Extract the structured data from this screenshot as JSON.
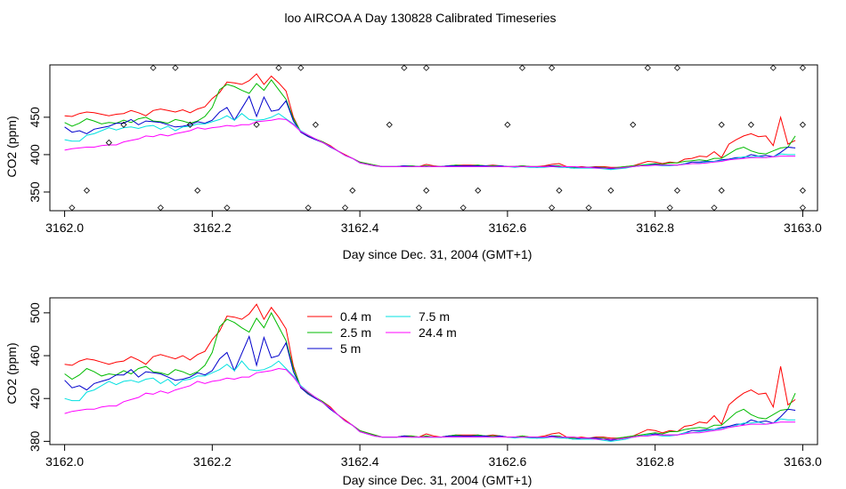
{
  "title": "loo AIRCOA A  Day 130828  Calibrated Timeseries",
  "colors": {
    "series_04": "#ff0000",
    "series_25": "#00bb00",
    "series_5": "#0000cc",
    "series_75": "#00e0e0",
    "series_244": "#ff00ff"
  },
  "chart_data": [
    {
      "type": "line",
      "xlabel": "Day since Dec. 31, 2004 (GMT+1)",
      "ylabel": "CO2 (ppm)",
      "xlim": [
        3161.98,
        3163.02
      ],
      "ylim": [
        325,
        520
      ],
      "xticks": [
        "3162.0",
        "3162.2",
        "3162.4",
        "3162.6",
        "3162.8",
        "3163.0"
      ],
      "yticks": [
        "350",
        "400",
        "450"
      ],
      "x": [
        3162.0,
        3162.01,
        3162.02,
        3162.03,
        3162.04,
        3162.05,
        3162.06,
        3162.07,
        3162.08,
        3162.09,
        3162.1,
        3162.11,
        3162.12,
        3162.13,
        3162.14,
        3162.15,
        3162.16,
        3162.17,
        3162.18,
        3162.19,
        3162.2,
        3162.21,
        3162.22,
        3162.23,
        3162.24,
        3162.25,
        3162.26,
        3162.27,
        3162.28,
        3162.29,
        3162.3,
        3162.31,
        3162.32,
        3162.33,
        3162.34,
        3162.35,
        3162.36,
        3162.37,
        3162.38,
        3162.39,
        3162.4,
        3162.41,
        3162.42,
        3162.43,
        3162.44,
        3162.45,
        3162.46,
        3162.47,
        3162.48,
        3162.49,
        3162.5,
        3162.51,
        3162.52,
        3162.53,
        3162.54,
        3162.55,
        3162.56,
        3162.57,
        3162.58,
        3162.59,
        3162.6,
        3162.61,
        3162.62,
        3162.63,
        3162.64,
        3162.65,
        3162.66,
        3162.67,
        3162.68,
        3162.69,
        3162.7,
        3162.71,
        3162.72,
        3162.73,
        3162.74,
        3162.75,
        3162.76,
        3162.77,
        3162.78,
        3162.79,
        3162.8,
        3162.81,
        3162.82,
        3162.83,
        3162.84,
        3162.85,
        3162.86,
        3162.87,
        3162.88,
        3162.89,
        3162.9,
        3162.91,
        3162.92,
        3162.93,
        3162.94,
        3162.95,
        3162.96,
        3162.97,
        3162.98,
        3162.99
      ],
      "series": [
        {
          "color_key": "series_04",
          "values": [
            452,
            451,
            455,
            457,
            456,
            454,
            452,
            454,
            455,
            459,
            456,
            452,
            459,
            461,
            459,
            457,
            460,
            456,
            461,
            464,
            475,
            483,
            497,
            496,
            494,
            499,
            508,
            494,
            505,
            496,
            485,
            450,
            430,
            425,
            421,
            417,
            412,
            405,
            400,
            395,
            390,
            388,
            386,
            384,
            384,
            384,
            385,
            385,
            384,
            387,
            385,
            384,
            385,
            386,
            386,
            386,
            386,
            385,
            386,
            385,
            384,
            384,
            385,
            384,
            384,
            385,
            387,
            388,
            384,
            383,
            384,
            383,
            384,
            384,
            383,
            383,
            384,
            385,
            388,
            391,
            390,
            388,
            390,
            389,
            394,
            395,
            398,
            397,
            404,
            396,
            414,
            420,
            425,
            428,
            424,
            425,
            412,
            450,
            414,
            419
          ]
        },
        {
          "color_key": "series_25",
          "values": [
            443,
            438,
            442,
            448,
            445,
            441,
            443,
            442,
            446,
            443,
            448,
            450,
            445,
            444,
            442,
            447,
            445,
            442,
            445,
            451,
            463,
            487,
            494,
            491,
            486,
            482,
            495,
            486,
            500,
            487,
            474,
            448,
            431,
            425,
            421,
            417,
            411,
            405,
            399,
            395,
            390,
            388,
            386,
            384,
            384,
            384,
            385,
            385,
            384,
            385,
            384,
            384,
            385,
            386,
            385,
            385,
            386,
            385,
            385,
            385,
            384,
            384,
            385,
            384,
            384,
            384,
            385,
            385,
            383,
            383,
            383,
            383,
            383,
            383,
            382,
            383,
            384,
            385,
            386,
            387,
            388,
            387,
            389,
            389,
            391,
            392,
            393,
            392,
            395,
            395,
            401,
            407,
            410,
            405,
            402,
            401,
            405,
            409,
            410,
            425
          ]
        },
        {
          "color_key": "series_5",
          "values": [
            437,
            430,
            432,
            428,
            434,
            436,
            438,
            442,
            442,
            447,
            440,
            445,
            444,
            443,
            440,
            437,
            438,
            440,
            444,
            442,
            446,
            457,
            463,
            446,
            462,
            478,
            451,
            477,
            458,
            460,
            472,
            445,
            430,
            424,
            420,
            416,
            410,
            405,
            399,
            395,
            389,
            387,
            385,
            384,
            384,
            384,
            385,
            384,
            384,
            384,
            384,
            384,
            385,
            385,
            385,
            385,
            385,
            385,
            384,
            385,
            384,
            384,
            384,
            384,
            383,
            384,
            385,
            384,
            383,
            382,
            383,
            383,
            383,
            382,
            381,
            382,
            383,
            384,
            385,
            386,
            387,
            386,
            386,
            386,
            388,
            390,
            390,
            391,
            391,
            393,
            394,
            396,
            396,
            400,
            398,
            399,
            397,
            403,
            410,
            409
          ]
        },
        {
          "color_key": "series_75",
          "values": [
            420,
            418,
            418,
            426,
            428,
            432,
            436,
            433,
            436,
            437,
            435,
            438,
            439,
            434,
            438,
            432,
            437,
            438,
            441,
            441,
            444,
            447,
            452,
            446,
            455,
            447,
            446,
            447,
            450,
            455,
            448,
            441,
            432,
            426,
            421,
            416,
            411,
            405,
            399,
            395,
            389,
            387,
            385,
            384,
            384,
            384,
            384,
            384,
            384,
            384,
            384,
            384,
            384,
            384,
            384,
            384,
            384,
            384,
            384,
            384,
            384,
            383,
            384,
            383,
            383,
            383,
            384,
            383,
            383,
            382,
            382,
            382,
            382,
            381,
            380,
            381,
            382,
            384,
            385,
            386,
            386,
            385,
            385,
            386,
            388,
            388,
            389,
            390,
            391,
            392,
            393,
            395,
            397,
            397,
            398,
            396,
            397,
            401,
            400,
            400
          ]
        },
        {
          "color_key": "series_244",
          "values": [
            406,
            408,
            409,
            410,
            410,
            412,
            413,
            413,
            417,
            419,
            421,
            425,
            424,
            427,
            425,
            428,
            430,
            432,
            436,
            434,
            436,
            437,
            439,
            438,
            440,
            440,
            444,
            445,
            446,
            448,
            447,
            440,
            431,
            426,
            421,
            416,
            411,
            405,
            399,
            395,
            389,
            387,
            385,
            384,
            384,
            384,
            384,
            384,
            384,
            384,
            384,
            384,
            384,
            384,
            384,
            384,
            384,
            384,
            384,
            384,
            384,
            384,
            384,
            384,
            384,
            384,
            384,
            384,
            384,
            384,
            383,
            383,
            382,
            382,
            382,
            382,
            383,
            384,
            385,
            385,
            386,
            386,
            386,
            386,
            387,
            388,
            388,
            389,
            390,
            391,
            393,
            394,
            395,
            396,
            396,
            396,
            397,
            398,
            398,
            398
          ]
        }
      ],
      "markers": [
        {
          "x": 3162.01,
          "y": 329
        },
        {
          "x": 3162.12,
          "y": 516
        },
        {
          "x": 3162.13,
          "y": 329
        },
        {
          "x": 3162.03,
          "y": 352
        },
        {
          "x": 3162.06,
          "y": 416
        },
        {
          "x": 3162.15,
          "y": 516
        },
        {
          "x": 3162.18,
          "y": 352
        },
        {
          "x": 3162.22,
          "y": 329
        },
        {
          "x": 3162.26,
          "y": 440
        },
        {
          "x": 3162.29,
          "y": 516
        },
        {
          "x": 3162.32,
          "y": 516
        },
        {
          "x": 3162.33,
          "y": 329
        },
        {
          "x": 3162.34,
          "y": 440
        },
        {
          "x": 3162.38,
          "y": 329
        },
        {
          "x": 3162.39,
          "y": 352
        },
        {
          "x": 3162.44,
          "y": 440
        },
        {
          "x": 3162.46,
          "y": 516
        },
        {
          "x": 3162.48,
          "y": 329
        },
        {
          "x": 3162.49,
          "y": 352
        },
        {
          "x": 3162.49,
          "y": 516
        },
        {
          "x": 3162.54,
          "y": 329
        },
        {
          "x": 3162.56,
          "y": 352
        },
        {
          "x": 3162.6,
          "y": 440
        },
        {
          "x": 3162.62,
          "y": 516
        },
        {
          "x": 3162.66,
          "y": 516
        },
        {
          "x": 3162.66,
          "y": 329
        },
        {
          "x": 3162.67,
          "y": 352
        },
        {
          "x": 3162.71,
          "y": 329
        },
        {
          "x": 3162.74,
          "y": 352
        },
        {
          "x": 3162.77,
          "y": 440
        },
        {
          "x": 3162.79,
          "y": 516
        },
        {
          "x": 3162.82,
          "y": 329
        },
        {
          "x": 3162.83,
          "y": 352
        },
        {
          "x": 3162.83,
          "y": 516
        },
        {
          "x": 3162.88,
          "y": 329
        },
        {
          "x": 3162.89,
          "y": 352
        },
        {
          "x": 3162.93,
          "y": 440
        },
        {
          "x": 3162.96,
          "y": 516
        },
        {
          "x": 3163.0,
          "y": 440
        },
        {
          "x": 3163.0,
          "y": 352
        },
        {
          "x": 3163.0,
          "y": 516
        },
        {
          "x": 3163.0,
          "y": 329
        },
        {
          "x": 3162.17,
          "y": 440
        },
        {
          "x": 3162.08,
          "y": 440
        },
        {
          "x": 3162.89,
          "y": 440
        }
      ]
    },
    {
      "type": "line",
      "xlabel": "Day since Dec. 31, 2004 (GMT+1)",
      "ylabel": "CO2 (ppm)",
      "xlim": [
        3161.98,
        3163.02
      ],
      "ylim": [
        377,
        514
      ],
      "xticks": [
        "3162.0",
        "3162.2",
        "3162.4",
        "3162.6",
        "3162.8",
        "3163.0"
      ],
      "yticks": [
        "380",
        "420",
        "460",
        "500"
      ],
      "legend": [
        {
          "label": "0.4 m",
          "color_key": "series_04"
        },
        {
          "label": "2.5 m",
          "color_key": "series_25"
        },
        {
          "label": "5 m",
          "color_key": "series_5"
        },
        {
          "label": "7.5 m",
          "color_key": "series_75"
        },
        {
          "label": "24.4 m",
          "color_key": "series_244"
        }
      ],
      "series_from_panel": 0
    }
  ]
}
